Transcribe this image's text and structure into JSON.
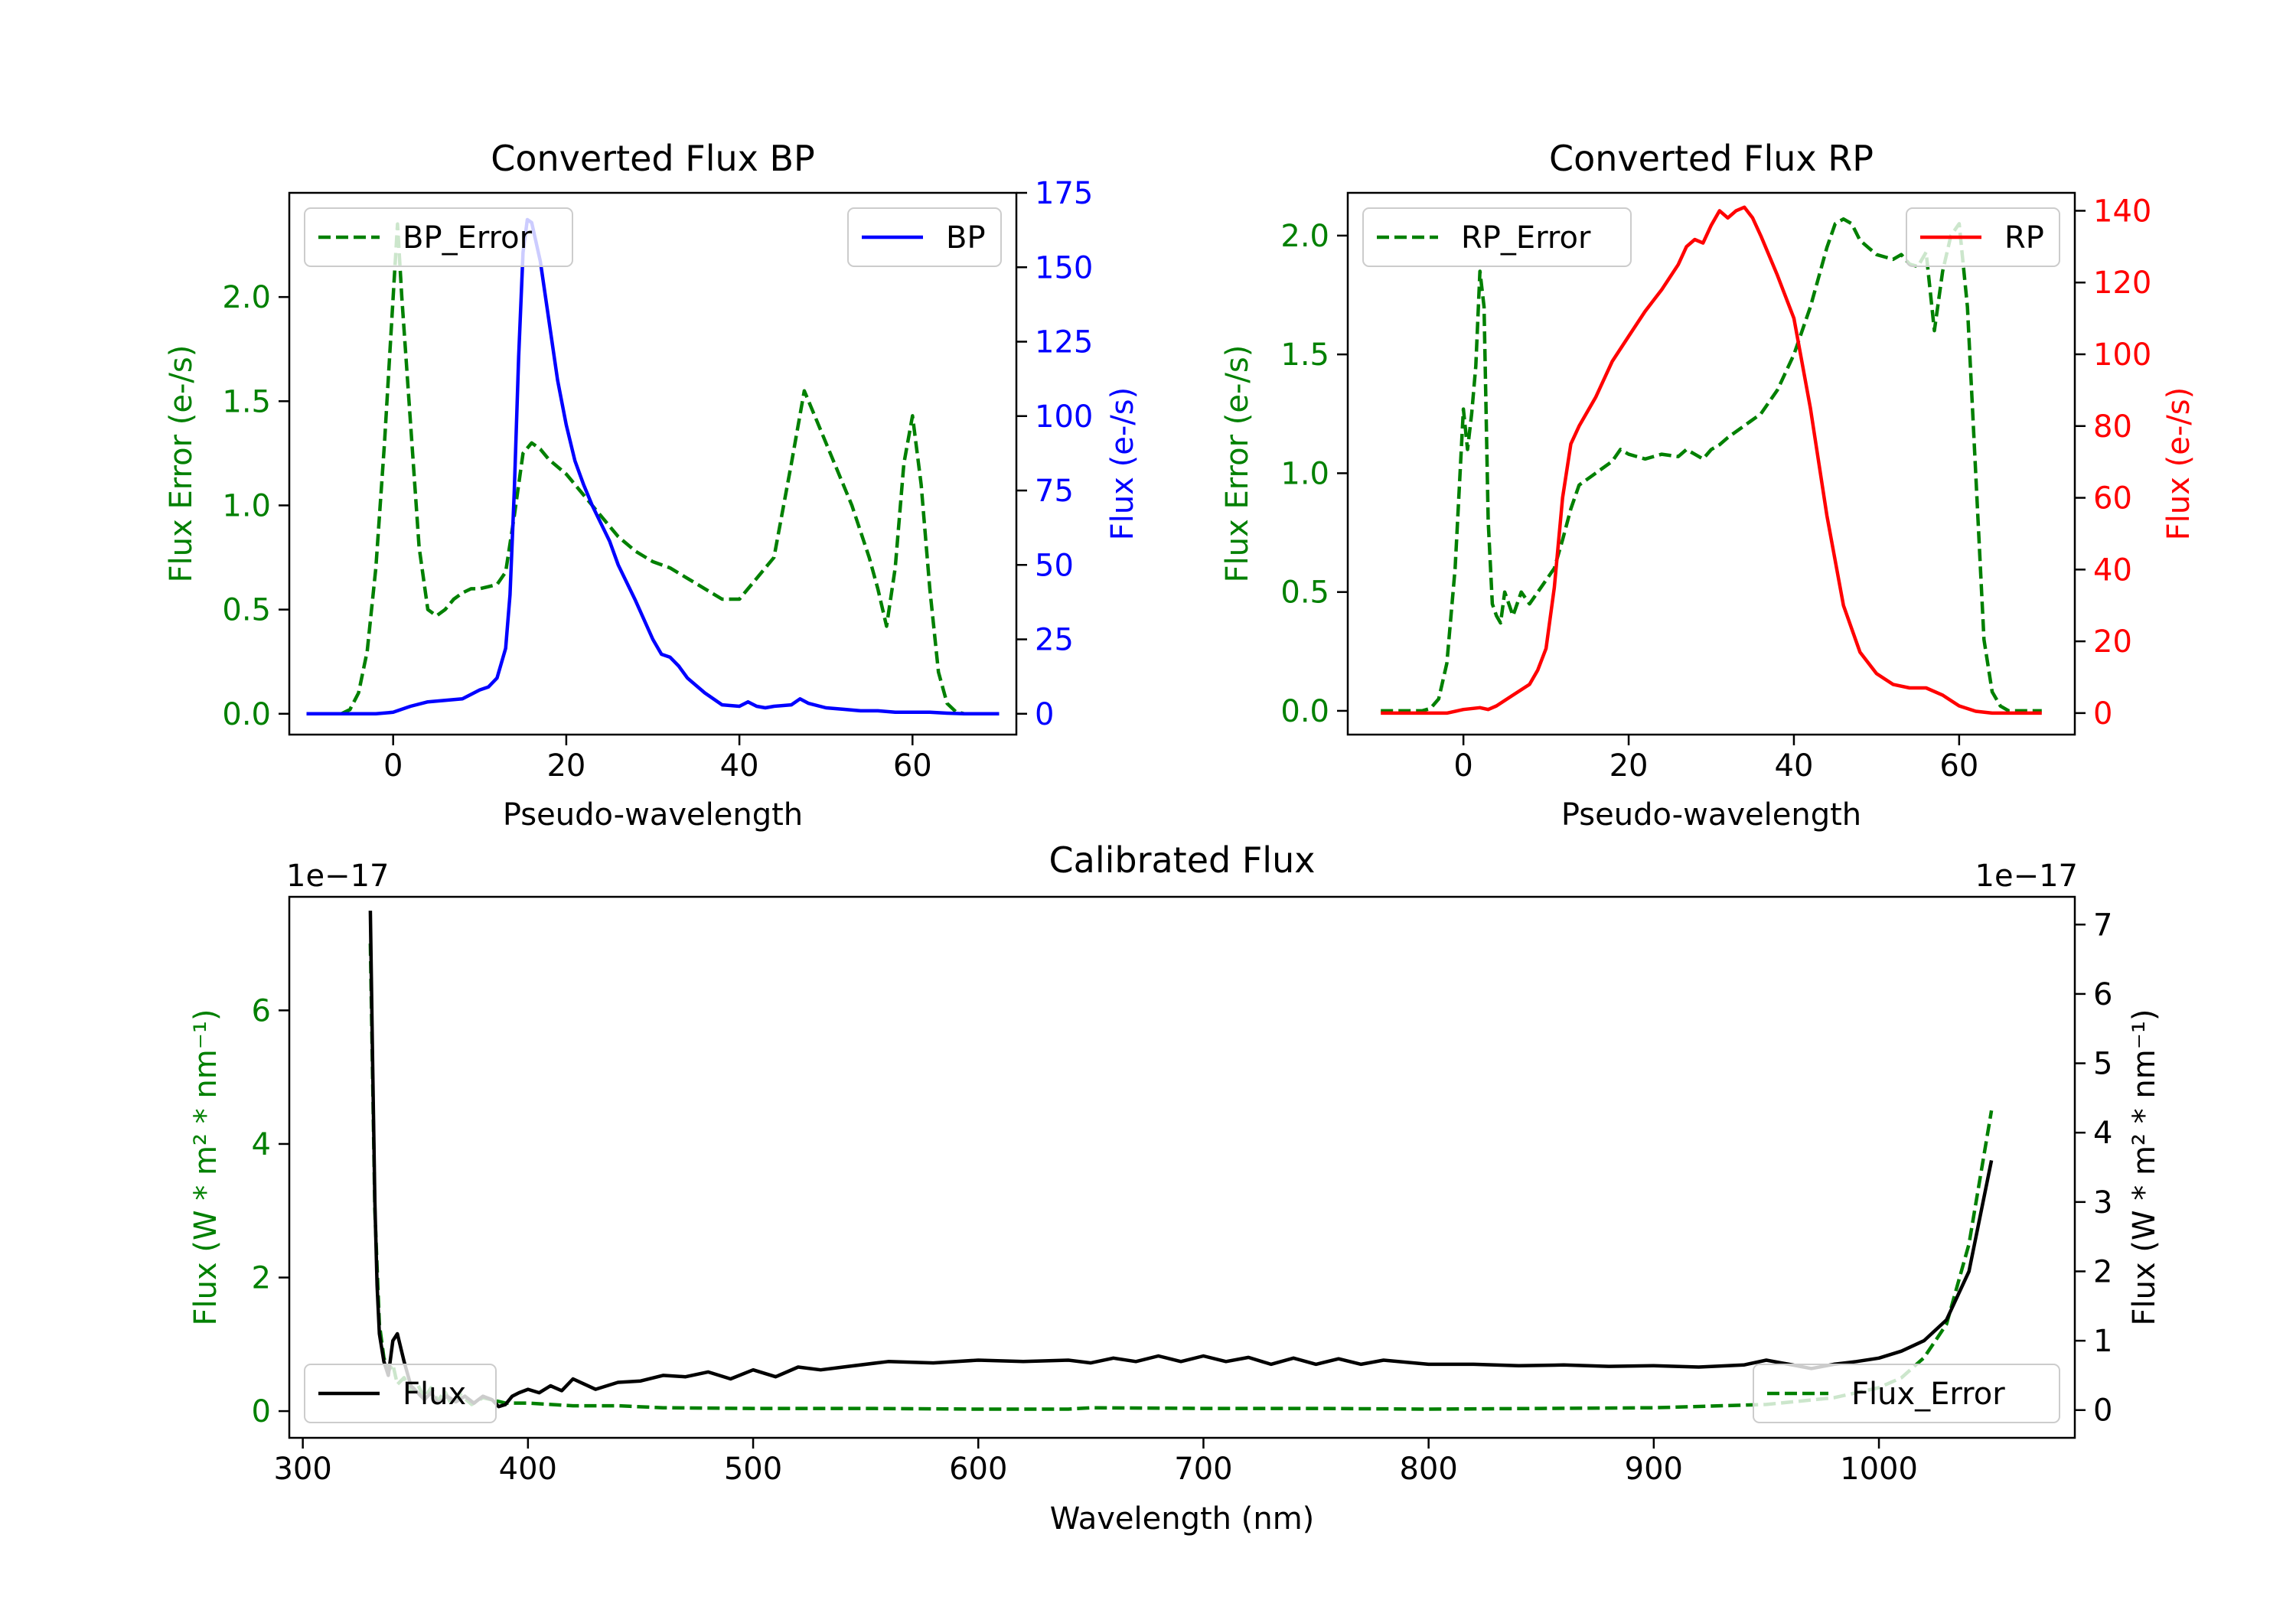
{
  "colors": {
    "bp": "#0000ff",
    "rp": "#ff0000",
    "error": "#008000",
    "flux": "#000000",
    "axis": "#000000"
  },
  "chart_data": [
    {
      "id": "bp",
      "type": "line",
      "title": "Converted Flux BP",
      "xlabel": "Pseudo-wavelength",
      "ylabel_left": "Flux Error (e-/s)",
      "ylabel_right": "Flux (e-/s)",
      "xlim": [
        -12,
        72
      ],
      "ylim_left": [
        -0.1,
        2.5
      ],
      "ylim_right": [
        -7.0,
        175.0
      ],
      "xticks": [
        0,
        20,
        40,
        60
      ],
      "xtick_labels": [
        "0",
        "20",
        "40",
        "60"
      ],
      "yticks_left": [
        0.0,
        0.5,
        1.0,
        1.5,
        2.0
      ],
      "ytick_labels_left": [
        "0.0",
        "0.5",
        "1.0",
        "1.5",
        "2.0"
      ],
      "yticks_right": [
        0,
        25,
        50,
        75,
        100,
        125,
        150,
        175
      ],
      "ytick_labels_right": [
        "0",
        "25",
        "50",
        "75",
        "100",
        "125",
        "150",
        "175"
      ],
      "legend_left": "BP_Error",
      "legend_right": "BP",
      "series": [
        {
          "name": "BP_Error",
          "axis": "left",
          "style": "dashed",
          "color": "#008000",
          "x": [
            -10,
            -6,
            -5,
            -4,
            -3,
            -2,
            -1,
            0,
            0.5,
            1,
            2,
            3,
            4,
            5,
            6,
            7,
            8,
            9,
            10,
            11,
            12,
            13,
            14,
            15,
            16,
            17,
            18,
            20,
            22,
            24,
            26,
            28,
            30,
            32,
            34,
            36,
            38,
            40,
            42,
            44,
            46,
            47.5,
            49,
            51,
            53,
            55,
            56,
            57,
            58,
            59,
            60,
            61,
            62,
            63,
            64,
            65,
            66,
            68,
            70
          ],
          "y": [
            0.0,
            0.0,
            0.02,
            0.1,
            0.3,
            0.7,
            1.3,
            2.0,
            2.35,
            2.0,
            1.4,
            0.8,
            0.5,
            0.47,
            0.5,
            0.55,
            0.58,
            0.6,
            0.6,
            0.61,
            0.62,
            0.68,
            0.95,
            1.25,
            1.3,
            1.27,
            1.22,
            1.15,
            1.05,
            0.95,
            0.85,
            0.78,
            0.73,
            0.7,
            0.65,
            0.6,
            0.55,
            0.55,
            0.65,
            0.75,
            1.2,
            1.55,
            1.4,
            1.2,
            1.0,
            0.75,
            0.6,
            0.42,
            0.7,
            1.2,
            1.43,
            1.1,
            0.6,
            0.2,
            0.05,
            0.01,
            0.0,
            0.0,
            0.0
          ]
        },
        {
          "name": "BP",
          "axis": "right",
          "style": "solid",
          "color": "#0000ff",
          "x": [
            -10,
            -6,
            -4,
            -2,
            0,
            2,
            4,
            6,
            8,
            10,
            11,
            12,
            13,
            13.5,
            14,
            14.5,
            15,
            15.5,
            16,
            17,
            18,
            19,
            20,
            21,
            22,
            23,
            24,
            25,
            26,
            28,
            30,
            31,
            32,
            33,
            34,
            36,
            38,
            40,
            41,
            42,
            43,
            44,
            46,
            47,
            48,
            50,
            52,
            54,
            56,
            58,
            60,
            62,
            64,
            66,
            68,
            70
          ],
          "y": [
            0,
            0,
            0,
            0,
            0.5,
            2.5,
            4,
            4.5,
            5,
            8,
            9,
            12,
            22,
            40,
            75,
            120,
            155,
            166,
            165,
            152,
            132,
            112,
            97,
            85,
            77,
            70,
            64,
            58,
            50,
            38,
            25,
            20,
            19,
            16,
            12,
            7,
            3,
            2.5,
            4,
            2.5,
            2,
            2.5,
            3,
            5,
            3.5,
            2,
            1.5,
            1,
            1,
            0.5,
            0.5,
            0.5,
            0.2,
            0,
            0,
            0
          ]
        }
      ]
    },
    {
      "id": "rp",
      "type": "line",
      "title": "Converted Flux RP",
      "xlabel": "Pseudo-wavelength",
      "ylabel_left": "Flux Error (e-/s)",
      "ylabel_right": "Flux (e-/s)",
      "xlim": [
        -14,
        74
      ],
      "ylim_left": [
        -0.1,
        2.18
      ],
      "ylim_right": [
        -6.0,
        145.0
      ],
      "xticks": [
        0,
        20,
        40,
        60
      ],
      "xtick_labels": [
        "0",
        "20",
        "40",
        "60"
      ],
      "yticks_left": [
        0.0,
        0.5,
        1.0,
        1.5,
        2.0
      ],
      "ytick_labels_left": [
        "0.0",
        "0.5",
        "1.0",
        "1.5",
        "2.0"
      ],
      "yticks_right": [
        0,
        20,
        40,
        60,
        80,
        100,
        120,
        140
      ],
      "ytick_labels_right": [
        "0",
        "20",
        "40",
        "60",
        "80",
        "100",
        "120",
        "140"
      ],
      "legend_left": "RP_Error",
      "legend_right": "RP",
      "series": [
        {
          "name": "RP_Error",
          "axis": "left",
          "style": "dashed",
          "color": "#008000",
          "x": [
            -10,
            -5,
            -4,
            -3,
            -2,
            -1,
            0,
            0.5,
            1,
            1.5,
            2,
            2.5,
            3,
            3.5,
            4,
            4.5,
            5,
            6,
            7,
            8,
            9,
            10,
            11,
            12,
            13,
            14,
            16,
            18,
            19,
            20,
            22,
            24,
            26,
            27,
            28,
            29,
            30,
            31,
            32,
            34,
            36,
            38,
            40,
            42,
            44,
            45,
            46,
            47,
            48,
            49,
            50,
            52,
            53,
            54,
            55,
            56,
            57,
            58,
            59,
            60,
            61,
            62,
            63,
            64,
            65,
            66,
            70
          ],
          "y": [
            0.0,
            0.0,
            0.01,
            0.05,
            0.2,
            0.6,
            1.27,
            1.1,
            1.25,
            1.45,
            1.85,
            1.7,
            0.8,
            0.45,
            0.4,
            0.37,
            0.5,
            0.4,
            0.5,
            0.45,
            0.5,
            0.55,
            0.6,
            0.72,
            0.85,
            0.95,
            1.0,
            1.05,
            1.1,
            1.08,
            1.06,
            1.08,
            1.07,
            1.1,
            1.08,
            1.06,
            1.1,
            1.12,
            1.15,
            1.2,
            1.25,
            1.35,
            1.5,
            1.7,
            1.95,
            2.05,
            2.07,
            2.05,
            1.98,
            1.95,
            1.92,
            1.9,
            1.92,
            1.88,
            1.87,
            1.93,
            1.6,
            1.85,
            2.0,
            2.05,
            1.7,
            1.0,
            0.3,
            0.08,
            0.02,
            0.0,
            0.0
          ]
        },
        {
          "name": "RP",
          "axis": "right",
          "style": "solid",
          "color": "#ff0000",
          "x": [
            -10,
            -4,
            -2,
            0,
            2,
            3,
            4,
            6,
            8,
            9,
            10,
            11,
            12,
            13,
            14,
            16,
            18,
            20,
            22,
            24,
            26,
            27,
            28,
            29,
            30,
            31,
            32,
            33,
            34,
            35,
            36,
            38,
            40,
            42,
            44,
            46,
            48,
            50,
            52,
            54,
            56,
            58,
            60,
            62,
            64,
            66,
            70
          ],
          "y": [
            0,
            0,
            0,
            1,
            1.5,
            1,
            2,
            5,
            8,
            12,
            18,
            35,
            60,
            75,
            80,
            88,
            98,
            105,
            112,
            118,
            125,
            130,
            132,
            131,
            136,
            140,
            138,
            140,
            141,
            138,
            133,
            122,
            110,
            85,
            55,
            30,
            17,
            11,
            8,
            7,
            7,
            5,
            2,
            0.5,
            0,
            0,
            0
          ]
        }
      ]
    },
    {
      "id": "calibrated",
      "type": "line",
      "title": "Calibrated Flux",
      "xlabel": "Wavelength (nm)",
      "ylabel_left": "Flux (W * m² * nm⁻¹)",
      "ylabel_right": "Flux (W * m² * nm⁻¹)",
      "scale_note_left": "1e−17",
      "scale_note_right": "1e−17",
      "xlim": [
        294,
        1087
      ],
      "ylim_left": [
        -0.4,
        7.7
      ],
      "ylim_right": [
        -0.4,
        7.4
      ],
      "xticks": [
        300,
        400,
        500,
        600,
        700,
        800,
        900,
        1000
      ],
      "xtick_labels": [
        "300",
        "400",
        "500",
        "600",
        "700",
        "800",
        "900",
        "1000"
      ],
      "yticks_left": [
        0,
        2,
        4,
        6
      ],
      "ytick_labels_left": [
        "0",
        "2",
        "4",
        "6"
      ],
      "yticks_right": [
        0,
        1,
        2,
        3,
        4,
        5,
        6,
        7
      ],
      "ytick_labels_right": [
        "0",
        "1",
        "2",
        "3",
        "4",
        "5",
        "6",
        "7"
      ],
      "legend_left": "Flux",
      "legend_right": "Flux_Error",
      "series": [
        {
          "name": "Flux_Error",
          "axis": "left",
          "style": "dashed",
          "color": "#008000",
          "x": [
            330,
            332,
            334,
            336,
            338,
            340,
            342,
            345,
            348,
            351,
            354,
            357,
            360,
            363,
            366,
            370,
            375,
            380,
            390,
            400,
            420,
            440,
            460,
            500,
            550,
            600,
            640,
            650,
            700,
            750,
            800,
            850,
            900,
            950,
            980,
            1000,
            1010,
            1020,
            1030,
            1040,
            1050
          ],
          "y": [
            7.0,
            3.0,
            1.3,
            0.8,
            0.6,
            0.7,
            0.4,
            0.5,
            0.3,
            0.4,
            0.2,
            0.35,
            0.15,
            0.3,
            0.1,
            0.25,
            0.1,
            0.2,
            0.12,
            0.12,
            0.08,
            0.08,
            0.05,
            0.04,
            0.04,
            0.03,
            0.03,
            0.05,
            0.04,
            0.04,
            0.03,
            0.04,
            0.05,
            0.1,
            0.2,
            0.35,
            0.5,
            0.8,
            1.3,
            2.5,
            4.5
          ]
        },
        {
          "name": "Flux",
          "axis": "right",
          "style": "solid",
          "color": "#000000",
          "x": [
            330,
            331,
            332,
            333,
            334,
            336,
            338,
            340,
            342,
            345,
            348,
            351,
            354,
            357,
            360,
            364,
            368,
            372,
            376,
            380,
            384,
            387,
            390,
            393,
            396,
            400,
            405,
            410,
            415,
            420,
            430,
            440,
            450,
            460,
            470,
            480,
            490,
            500,
            510,
            520,
            530,
            540,
            560,
            580,
            600,
            620,
            640,
            650,
            660,
            670,
            680,
            690,
            700,
            710,
            720,
            730,
            740,
            750,
            760,
            770,
            780,
            800,
            820,
            840,
            860,
            880,
            900,
            920,
            940,
            950,
            960,
            970,
            980,
            990,
            1000,
            1010,
            1020,
            1030,
            1040,
            1050
          ],
          "y": [
            7.2,
            5.0,
            3.0,
            1.8,
            1.1,
            0.7,
            0.5,
            1.0,
            1.1,
            0.7,
            0.35,
            0.25,
            0.15,
            0.25,
            0.1,
            0.2,
            0.12,
            0.2,
            0.1,
            0.2,
            0.15,
            0.05,
            0.08,
            0.2,
            0.25,
            0.3,
            0.25,
            0.35,
            0.28,
            0.45,
            0.3,
            0.4,
            0.42,
            0.5,
            0.48,
            0.55,
            0.45,
            0.58,
            0.48,
            0.62,
            0.58,
            0.62,
            0.7,
            0.68,
            0.72,
            0.7,
            0.72,
            0.68,
            0.75,
            0.7,
            0.78,
            0.7,
            0.78,
            0.7,
            0.76,
            0.66,
            0.75,
            0.66,
            0.74,
            0.66,
            0.72,
            0.66,
            0.66,
            0.64,
            0.65,
            0.63,
            0.64,
            0.62,
            0.65,
            0.72,
            0.66,
            0.6,
            0.66,
            0.7,
            0.75,
            0.85,
            1.0,
            1.3,
            2.0,
            3.6
          ]
        }
      ]
    }
  ]
}
